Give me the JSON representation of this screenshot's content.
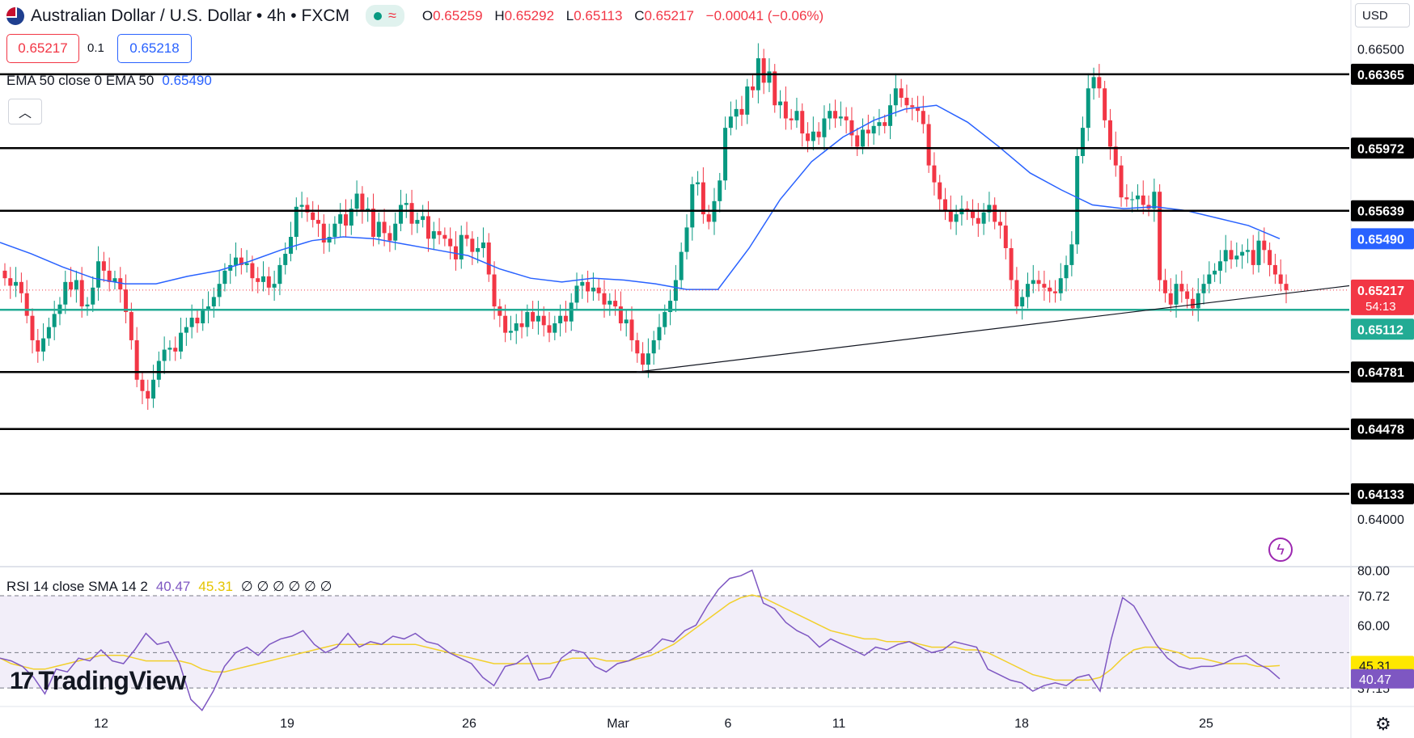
{
  "header": {
    "title": "Australian Dollar / U.S. Dollar • 4h • FXCM",
    "ohlc": [
      {
        "k": "O",
        "v": "0.65259"
      },
      {
        "k": "H",
        "v": "0.65292"
      },
      {
        "k": "L",
        "v": "0.65113"
      },
      {
        "k": "C",
        "v": "0.65217"
      }
    ],
    "change": "−0.00041 (−0.06%)",
    "sell_price": "0.65217",
    "spread": "0.1",
    "buy_price": "0.65218",
    "currency": "USD"
  },
  "ema_legend": {
    "label": "EMA 50 close 0 EMA 50",
    "value": "0.65490"
  },
  "rsi_legend": {
    "label": "RSI 14 close SMA 14 2",
    "rsi": "40.47",
    "sma": "45.31",
    "empties": "∅ ∅ ∅ ∅ ∅ ∅"
  },
  "logo": {
    "mark": "17",
    "text": "TradingView"
  },
  "colors": {
    "up": "#089981",
    "down": "#f23645",
    "ema": "#2962ff",
    "rsi": "#7e57c2",
    "rsi_sma": "#f2d02c",
    "support_line": "#22ab94",
    "current_line": "#f23645"
  },
  "chart_data": [
    {
      "type": "candlestick",
      "title": "Australian Dollar / U.S. Dollar • 4h • FXCM",
      "ylim": [
        0.6375,
        0.6676
      ],
      "x_ticks": [
        "12",
        "19",
        "26",
        "Mar",
        "6",
        "11",
        "18",
        "25"
      ],
      "y_ticks": [
        "0.66500",
        "0.64000"
      ],
      "horizontal_levels": [
        {
          "value": 0.66365,
          "label": "0.66365"
        },
        {
          "value": 0.65972,
          "label": "0.65972"
        },
        {
          "value": 0.65639,
          "label": "0.65639"
        },
        {
          "value": 0.64781,
          "label": "0.64781"
        },
        {
          "value": 0.64478,
          "label": "0.64478"
        },
        {
          "value": 0.64133,
          "label": "0.64133"
        }
      ],
      "support_level": {
        "value": 0.65112,
        "label": "0.65112"
      },
      "ema_level": {
        "value": 0.6549,
        "label": "0.65490"
      },
      "current_price": {
        "value": 0.65217,
        "label": "0.65217",
        "countdown": "54:13"
      },
      "trendline": {
        "from": {
          "bar": 116,
          "price": 0.64781
        },
        "to": {
          "bar": 248,
          "price": 0.6524
        }
      },
      "series": [
        {
          "name": "close",
          "values": [
            0.6528,
            0.6524,
            0.6526,
            0.652,
            0.6508,
            0.6495,
            0.6489,
            0.6496,
            0.6502,
            0.6509,
            0.6514,
            0.6526,
            0.6522,
            0.6527,
            0.6513,
            0.6514,
            0.6523,
            0.6537,
            0.6532,
            0.6526,
            0.6528,
            0.6522,
            0.651,
            0.6495,
            0.6474,
            0.6468,
            0.6464,
            0.6474,
            0.6484,
            0.649,
            0.6491,
            0.6489,
            0.6499,
            0.6502,
            0.6507,
            0.6504,
            0.6511,
            0.6513,
            0.6518,
            0.6525,
            0.6532,
            0.6535,
            0.6539,
            0.6535,
            0.6536,
            0.6528,
            0.6526,
            0.6529,
            0.6523,
            0.6525,
            0.6535,
            0.6541,
            0.655,
            0.6566,
            0.6567,
            0.6563,
            0.6559,
            0.6557,
            0.6547,
            0.655,
            0.6557,
            0.6562,
            0.6556,
            0.6565,
            0.6573,
            0.6564,
            0.6565,
            0.655,
            0.6558,
            0.6552,
            0.6548,
            0.6557,
            0.6567,
            0.6568,
            0.6557,
            0.6559,
            0.6561,
            0.6549,
            0.6553,
            0.6551,
            0.6549,
            0.6545,
            0.6538,
            0.6551,
            0.6549,
            0.6542,
            0.6544,
            0.6547,
            0.653,
            0.6513,
            0.6508,
            0.6499,
            0.65,
            0.6504,
            0.6502,
            0.651,
            0.6505,
            0.6508,
            0.6503,
            0.6499,
            0.6504,
            0.6508,
            0.6505,
            0.6515,
            0.6524,
            0.6526,
            0.6521,
            0.6523,
            0.652,
            0.6514,
            0.6516,
            0.6513,
            0.6504,
            0.6506,
            0.6495,
            0.6488,
            0.6482,
            0.6488,
            0.6495,
            0.6502,
            0.651,
            0.6516,
            0.6527,
            0.6542,
            0.6555,
            0.6578,
            0.6579,
            0.6562,
            0.6558,
            0.6569,
            0.658,
            0.6608,
            0.6614,
            0.6618,
            0.6615,
            0.663,
            0.6628,
            0.6645,
            0.6632,
            0.6638,
            0.662,
            0.6622,
            0.6613,
            0.6612,
            0.6617,
            0.6605,
            0.6601,
            0.6606,
            0.6603,
            0.6613,
            0.6617,
            0.6613,
            0.6614,
            0.6612,
            0.6604,
            0.6598,
            0.6607,
            0.6605,
            0.6609,
            0.6611,
            0.6609,
            0.662,
            0.6629,
            0.6624,
            0.662,
            0.6619,
            0.6617,
            0.661,
            0.6588,
            0.6579,
            0.657,
            0.6564,
            0.6558,
            0.6562,
            0.6565,
            0.6564,
            0.656,
            0.6557,
            0.6563,
            0.6567,
            0.6558,
            0.6556,
            0.6544,
            0.6527,
            0.6513,
            0.6518,
            0.6525,
            0.6527,
            0.6525,
            0.6523,
            0.6521,
            0.652,
            0.6528,
            0.6535,
            0.6546,
            0.6593,
            0.6608,
            0.6629,
            0.6635,
            0.6629,
            0.6612,
            0.6598,
            0.6588,
            0.6571,
            0.657,
            0.657,
            0.6572,
            0.6567,
            0.6565,
            0.6574,
            0.6527,
            0.652,
            0.6514,
            0.6525,
            0.6521,
            0.6517,
            0.6512,
            0.652,
            0.6525,
            0.653,
            0.6532,
            0.6537,
            0.6543,
            0.6538,
            0.654,
            0.6542,
            0.6543,
            0.6535,
            0.6548,
            0.6543,
            0.6535,
            0.653,
            0.6525,
            0.65217
          ]
        },
        {
          "name": "EMA 50",
          "values": [
            0.6547,
            0.6541,
            0.6534,
            0.6528,
            0.6525,
            0.6525,
            0.6529,
            0.6532,
            0.6537,
            0.6543,
            0.6548,
            0.655,
            0.6549,
            0.6546,
            0.6543,
            0.654,
            0.6533,
            0.6528,
            0.6526,
            0.6528,
            0.6527,
            0.6525,
            0.6522,
            0.6522,
            0.6544,
            0.657,
            0.659,
            0.6603,
            0.6612,
            0.6618,
            0.662,
            0.6611,
            0.6598,
            0.6584,
            0.6575,
            0.6567,
            0.6565,
            0.6566,
            0.6564,
            0.656,
            0.6556,
            0.6549
          ]
        }
      ]
    },
    {
      "type": "line",
      "title": "RSI 14 close SMA 14 2",
      "ylim": [
        31,
        81
      ],
      "y_ticks": [
        "80.00",
        "70.72",
        "60.00",
        "45.31",
        "40.47",
        "37.15"
      ],
      "band": [
        37.15,
        70.72
      ],
      "series": [
        {
          "name": "RSI",
          "values": [
            48,
            47,
            45,
            41,
            35,
            44,
            43,
            48,
            47,
            51,
            47,
            46,
            51,
            57,
            53,
            54,
            46,
            33,
            29,
            36,
            45,
            50,
            52,
            49,
            53,
            55,
            56,
            58,
            53,
            50,
            52,
            57,
            52,
            54,
            53,
            56,
            55,
            57,
            54,
            53,
            50,
            48,
            46,
            41,
            38,
            45,
            46,
            49,
            40,
            41,
            48,
            51,
            50,
            45,
            43,
            46,
            47,
            49,
            51,
            55,
            54,
            58,
            60,
            67,
            73,
            77,
            78,
            80,
            68,
            66,
            61,
            58,
            56,
            52,
            55,
            53,
            51,
            49,
            52,
            51,
            53,
            54,
            52,
            50,
            51,
            54,
            53,
            52,
            44,
            42,
            40,
            39,
            36,
            38,
            39,
            38,
            41,
            42,
            36,
            55,
            70,
            67,
            60,
            53,
            48,
            45,
            44,
            45,
            45,
            46,
            48,
            49,
            46,
            44,
            40.47
          ]
        },
        {
          "name": "SMA 14",
          "values": [
            48,
            46,
            45,
            44,
            44,
            45,
            46,
            47,
            48,
            49,
            49,
            49,
            48,
            47,
            47,
            47,
            47,
            46,
            44,
            43,
            43,
            44,
            45,
            46,
            47,
            48,
            49,
            50,
            51,
            52,
            53,
            53,
            53,
            53,
            53,
            53,
            53,
            53,
            52,
            51,
            50,
            49,
            48,
            47,
            46,
            46,
            46,
            46,
            46,
            46,
            47,
            48,
            48,
            48,
            47,
            47,
            47,
            48,
            49,
            51,
            53,
            56,
            59,
            62,
            65,
            68,
            70,
            71,
            70,
            68,
            66,
            64,
            62,
            60,
            58,
            57,
            56,
            55,
            55,
            54,
            54,
            54,
            53,
            52,
            52,
            52,
            51,
            51,
            50,
            48,
            46,
            44,
            42,
            41,
            40,
            40,
            40,
            40,
            41,
            44,
            48,
            51,
            52,
            52,
            51,
            50,
            48,
            48,
            47,
            46,
            46,
            46,
            45,
            45,
            45.31
          ]
        }
      ]
    }
  ]
}
